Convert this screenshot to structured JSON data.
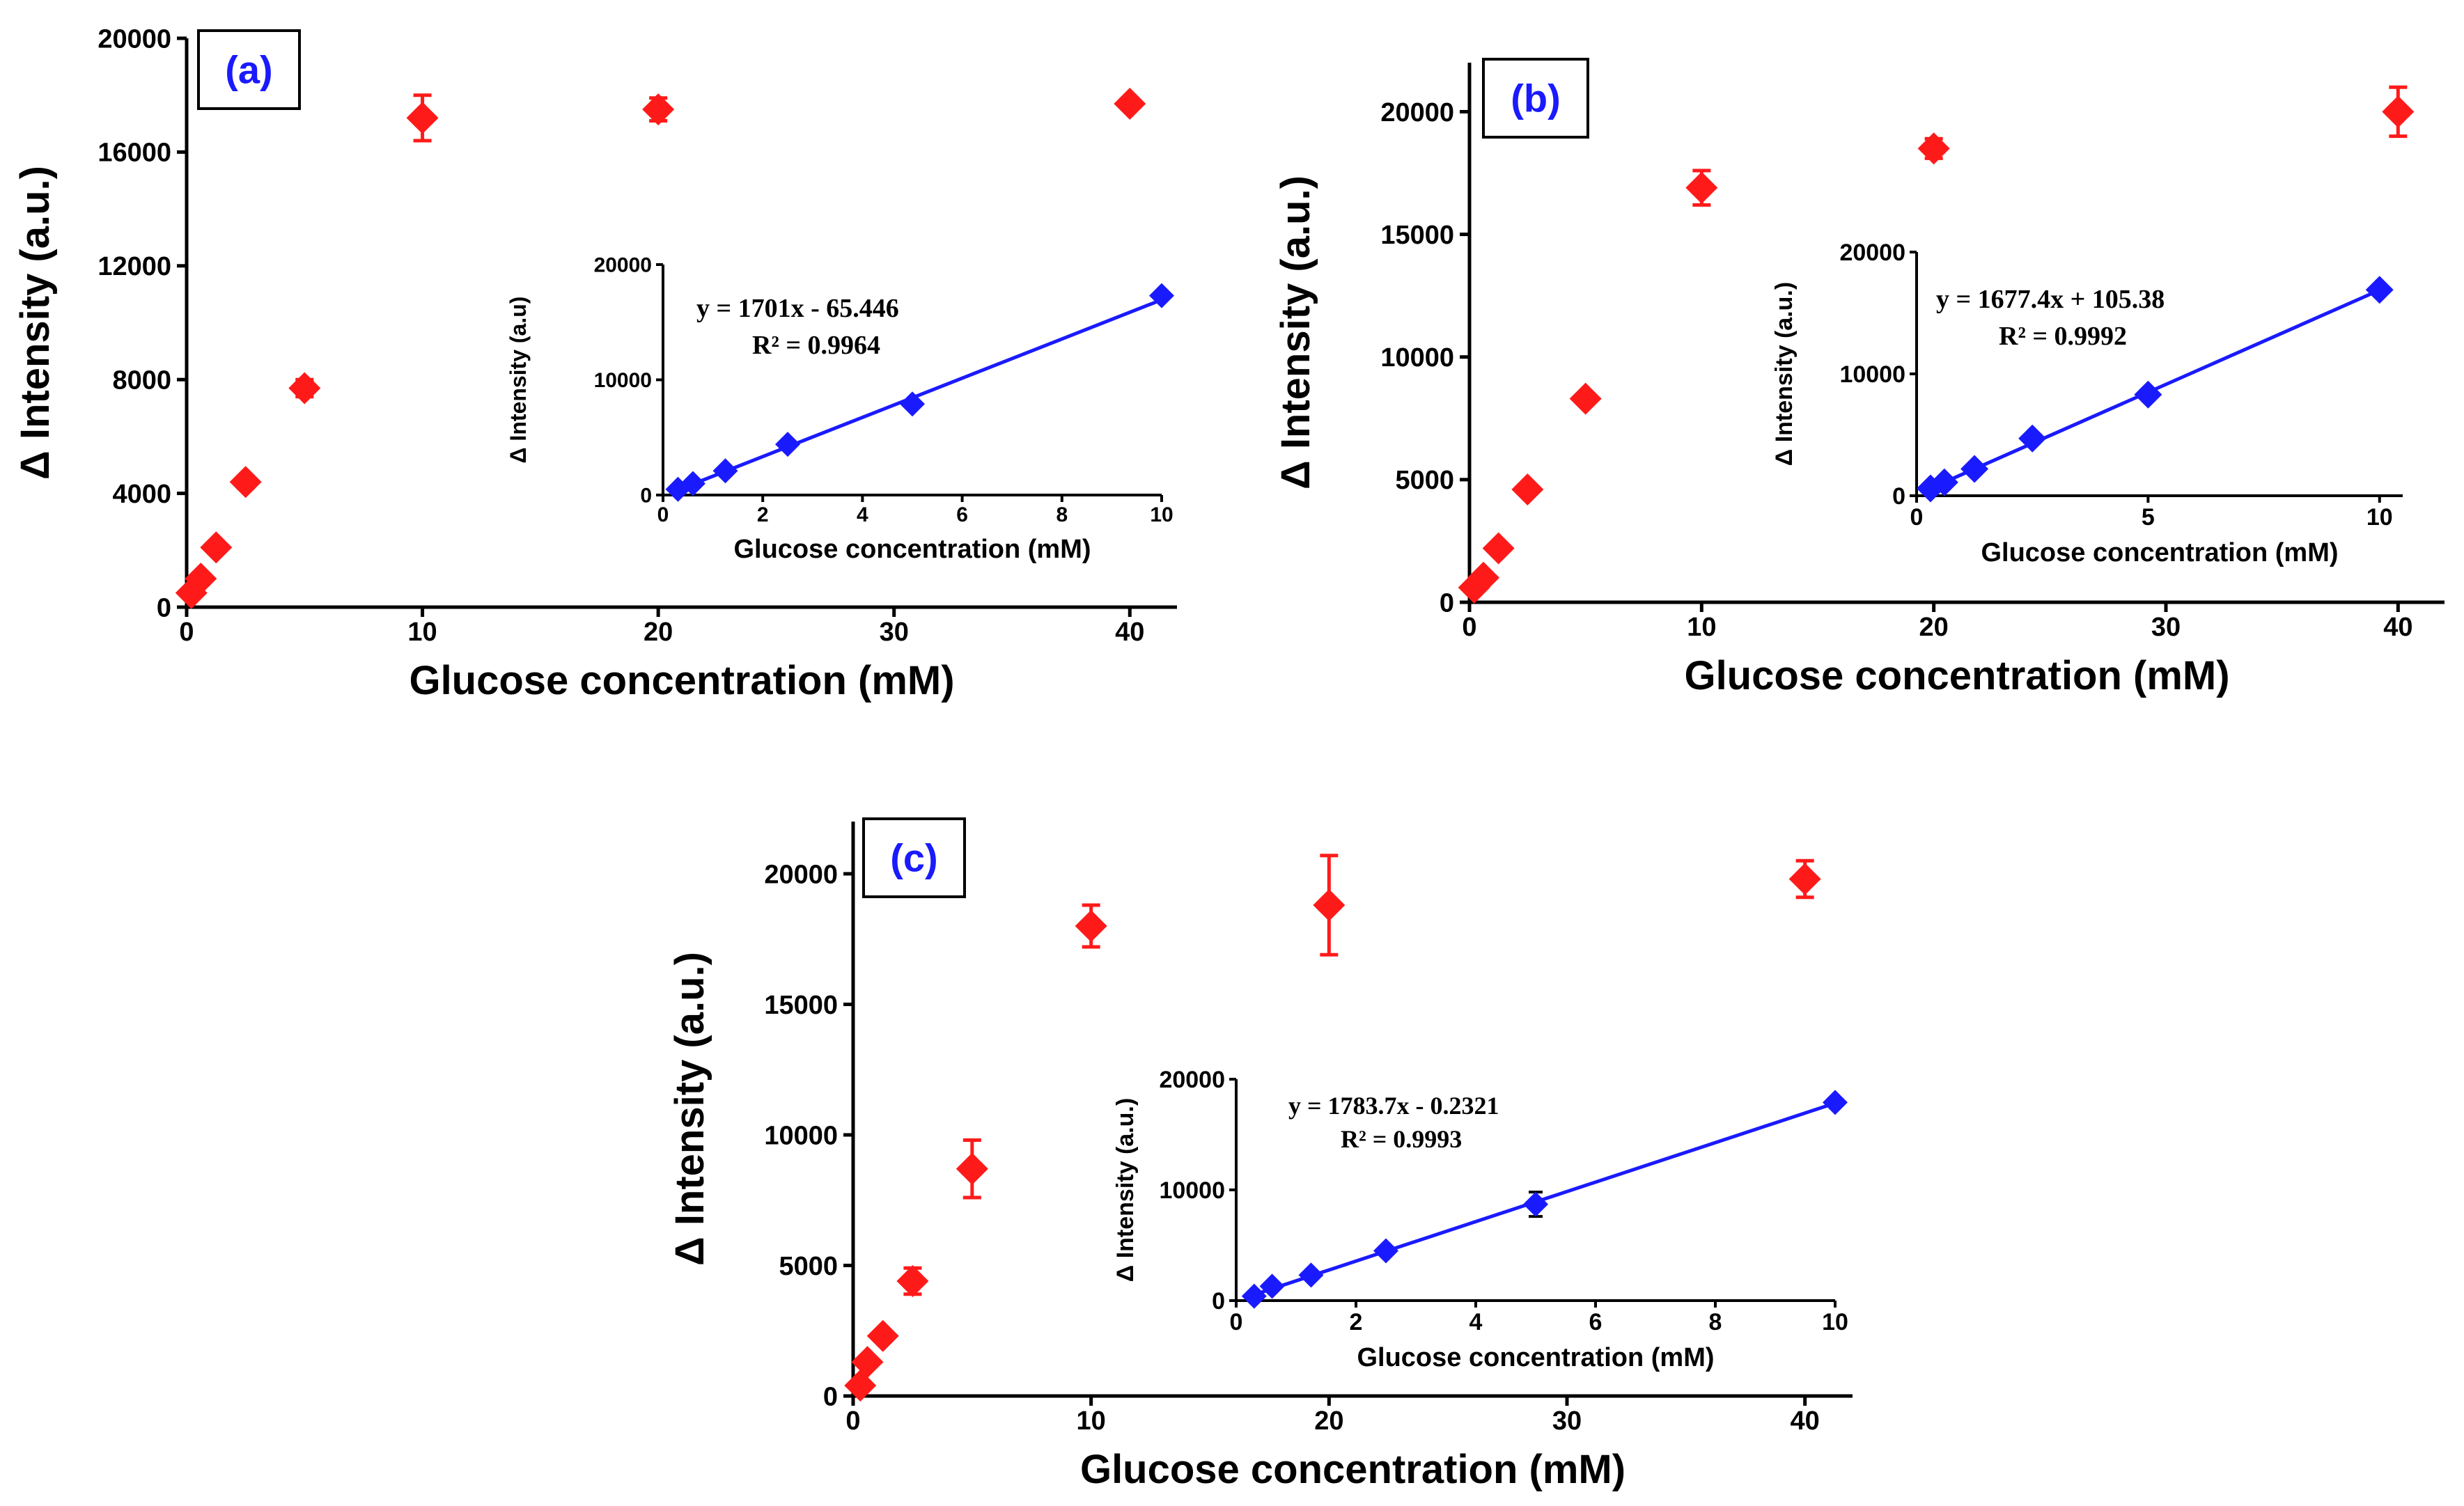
{
  "colors": {
    "main": "#ff1a1a",
    "inset": "#1a1aff",
    "axis": "#000000",
    "label_box_text": "#1a1aff"
  },
  "chart_data": [
    {
      "id": "a",
      "panel_label": "(a)",
      "type": "scatter",
      "xlabel": "Glucose concentration (mM)",
      "ylabel": "Δ Intensity (a.u.)",
      "xlim": [
        0,
        42
      ],
      "ylim": [
        0,
        20000
      ],
      "xticks": [
        0,
        10,
        20,
        30,
        40
      ],
      "yticks": [
        0,
        4000,
        8000,
        12000,
        16000,
        20000
      ],
      "points": [
        {
          "x": 0.2,
          "y": 500,
          "err": 0
        },
        {
          "x": 0.6,
          "y": 1000,
          "err": 0
        },
        {
          "x": 1.25,
          "y": 2100,
          "err": 0
        },
        {
          "x": 2.5,
          "y": 4400,
          "err": 200
        },
        {
          "x": 5,
          "y": 7700,
          "err": 300
        },
        {
          "x": 10,
          "y": 17200,
          "err": 800
        },
        {
          "x": 20,
          "y": 17500,
          "err": 400
        },
        {
          "x": 40,
          "y": 17700,
          "err": 0
        }
      ],
      "inset": {
        "xlabel": "Glucose concentration (mM)",
        "ylabel": "Δ Intensity (a.u)",
        "xlim": [
          0,
          10
        ],
        "ylim": [
          0,
          20000
        ],
        "xticks": [
          0,
          2,
          4,
          6,
          8,
          10
        ],
        "yticks": [
          0,
          10000,
          20000
        ],
        "points": [
          {
            "x": 0.3,
            "y": 500,
            "err": 0
          },
          {
            "x": 0.6,
            "y": 1000,
            "err": 0
          },
          {
            "x": 1.25,
            "y": 2100,
            "err": 0
          },
          {
            "x": 2.5,
            "y": 4400,
            "err": 0
          },
          {
            "x": 5,
            "y": 7900,
            "err": 0
          },
          {
            "x": 10,
            "y": 17300,
            "err": 0
          }
        ],
        "equation": "y = 1701x - 65.446",
        "r2": "R² = 0.9964",
        "fit": {
          "slope": 1701,
          "intercept": -65.446,
          "x_from": 0.3,
          "x_to": 10
        }
      }
    },
    {
      "id": "b",
      "panel_label": "(b)",
      "type": "scatter",
      "xlabel": "Glucose concentration (mM)",
      "ylabel": "Δ Intensity (a.u.)",
      "xlim": [
        0,
        42
      ],
      "ylim": [
        0,
        22000
      ],
      "xticks": [
        0,
        10,
        20,
        30,
        40
      ],
      "yticks": [
        0,
        5000,
        10000,
        15000,
        20000
      ],
      "points": [
        {
          "x": 0.2,
          "y": 600,
          "err": 0
        },
        {
          "x": 0.6,
          "y": 1000,
          "err": 0
        },
        {
          "x": 1.25,
          "y": 2200,
          "err": 0
        },
        {
          "x": 2.5,
          "y": 4600,
          "err": 0
        },
        {
          "x": 5,
          "y": 8300,
          "err": 0
        },
        {
          "x": 10,
          "y": 16900,
          "err": 700
        },
        {
          "x": 20,
          "y": 18500,
          "err": 400
        },
        {
          "x": 40,
          "y": 20000,
          "err": 1000
        }
      ],
      "inset": {
        "xlabel": "Glucose concentration (mM)",
        "ylabel": "Δ Intensity (a.u.)",
        "xlim": [
          0,
          10.5
        ],
        "ylim": [
          0,
          20000
        ],
        "xticks": [
          0,
          5,
          10
        ],
        "yticks": [
          0,
          10000,
          20000
        ],
        "points": [
          {
            "x": 0.3,
            "y": 600,
            "err": 0
          },
          {
            "x": 0.6,
            "y": 1100,
            "err": 0
          },
          {
            "x": 1.25,
            "y": 2200,
            "err": 0
          },
          {
            "x": 2.5,
            "y": 4700,
            "err": 0
          },
          {
            "x": 5,
            "y": 8300,
            "err": 0
          },
          {
            "x": 10,
            "y": 16900,
            "err": 0
          }
        ],
        "equation": "y = 1677.4x + 105.38",
        "r2": "R² = 0.9992",
        "fit": {
          "slope": 1677.4,
          "intercept": 105.38,
          "x_from": 0.3,
          "x_to": 10
        }
      }
    },
    {
      "id": "c",
      "panel_label": "(c)",
      "type": "scatter",
      "xlabel": "Glucose concentration (mM)",
      "ylabel": "Δ Intensity (a.u.)",
      "xlim": [
        0,
        42
      ],
      "ylim": [
        0,
        22000
      ],
      "xticks": [
        0,
        10,
        20,
        30,
        40
      ],
      "yticks": [
        0,
        5000,
        10000,
        15000,
        20000
      ],
      "points": [
        {
          "x": 0.3,
          "y": 400,
          "err": 0
        },
        {
          "x": 0.6,
          "y": 1300,
          "err": 0
        },
        {
          "x": 1.25,
          "y": 2300,
          "err": 0
        },
        {
          "x": 2.5,
          "y": 4400,
          "err": 500
        },
        {
          "x": 5,
          "y": 8700,
          "err": 1100
        },
        {
          "x": 10,
          "y": 18000,
          "err": 800
        },
        {
          "x": 20,
          "y": 18800,
          "err": 1900
        },
        {
          "x": 40,
          "y": 19800,
          "err": 700
        }
      ],
      "inset": {
        "xlabel": "Glucose concentration (mM)",
        "ylabel": "Δ Intensity (a.u.)",
        "xlim": [
          0,
          10
        ],
        "ylim": [
          0,
          20000
        ],
        "xticks": [
          0,
          2,
          4,
          6,
          8,
          10
        ],
        "yticks": [
          0,
          10000,
          20000
        ],
        "points": [
          {
            "x": 0.3,
            "y": 400,
            "err": 0
          },
          {
            "x": 0.6,
            "y": 1300,
            "err": 0
          },
          {
            "x": 1.25,
            "y": 2300,
            "err": 0
          },
          {
            "x": 2.5,
            "y": 4500,
            "err": 0
          },
          {
            "x": 5,
            "y": 8700,
            "err": 1100
          },
          {
            "x": 10,
            "y": 17900,
            "err": 0
          }
        ],
        "equation": "y = 1783.7x - 0.2321",
        "r2": "R² = 0.9993",
        "fit": {
          "slope": 1783.7,
          "intercept": -0.2321,
          "x_from": 0.3,
          "x_to": 10
        }
      }
    }
  ]
}
